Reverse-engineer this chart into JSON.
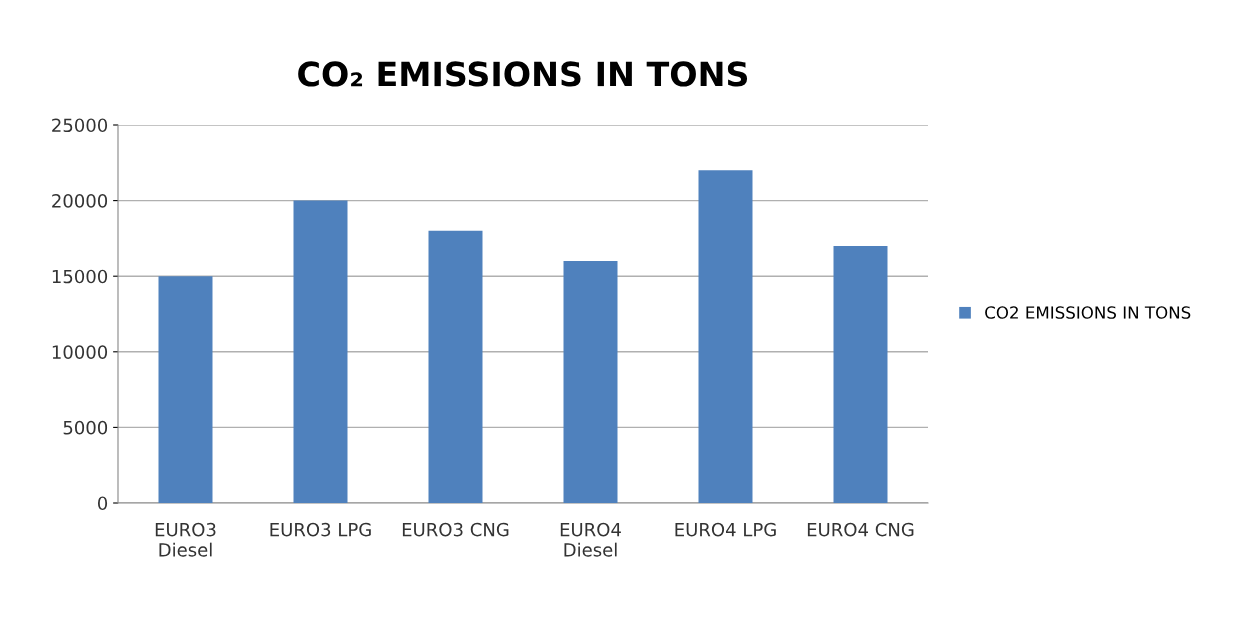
{
  "chart_data": {
    "type": "bar",
    "title": "CO₂ EMISSIONS IN TONS",
    "categories": [
      "EURO3\nDiesel",
      "EURO3 LPG",
      "EURO3 CNG",
      "EURO4\nDiesel",
      "EURO4 LPG",
      "EURO4 CNG"
    ],
    "series": [
      {
        "name": "CO2 EMISSIONS IN TONS",
        "color": "#4f81bd",
        "values": [
          15000,
          20000,
          18000,
          16000,
          22000,
          17000
        ]
      }
    ],
    "ylim": [
      0,
      25000
    ],
    "yticks": [
      0,
      5000,
      10000,
      15000,
      20000,
      25000
    ],
    "grid": "y",
    "legend": "right"
  }
}
